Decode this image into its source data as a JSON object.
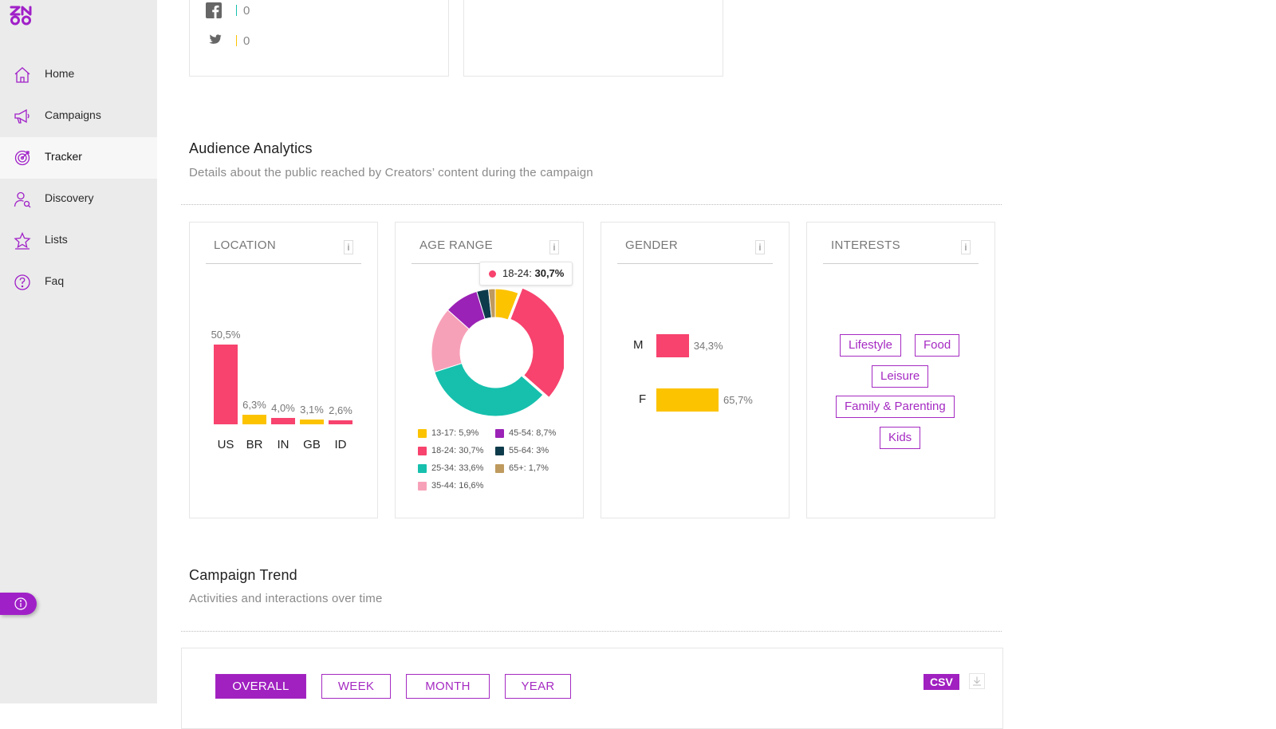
{
  "sidebar": {
    "items": [
      {
        "label": "Home",
        "icon": "home-icon"
      },
      {
        "label": "Campaigns",
        "icon": "megaphone-icon"
      },
      {
        "label": "Tracker",
        "icon": "target-icon",
        "active": true
      },
      {
        "label": "Discovery",
        "icon": "user-search-icon"
      },
      {
        "label": "Lists",
        "icon": "star-list-icon"
      },
      {
        "label": "Faq",
        "icon": "question-icon"
      }
    ]
  },
  "social": {
    "facebook_value": "0",
    "twitter_value": "0"
  },
  "audience": {
    "title": "Audience Analytics",
    "subtitle": "Details about the public reached by Creators’ content during the campaign"
  },
  "cards": {
    "location": {
      "title": "LOCATION",
      "info": "i"
    },
    "age": {
      "title": "AGE RANGE",
      "info": "i"
    },
    "gender": {
      "title": "GENDER",
      "info": "i"
    },
    "interests": {
      "title": "INTERESTS",
      "info": "i"
    }
  },
  "chart_data": [
    {
      "type": "bar",
      "categories": [
        "US",
        "BR",
        "IN",
        "GB",
        "ID"
      ],
      "values": [
        50.5,
        6.3,
        4.0,
        3.1,
        2.6
      ],
      "value_labels": [
        "50,5%",
        "6,3%",
        "4,0%",
        "3,1%",
        "2,6%"
      ],
      "colors": [
        "#f7436e",
        "#fcc300",
        "#f7436e",
        "#fcc300",
        "#f7436e"
      ]
    },
    {
      "type": "pie",
      "labels": [
        "13-17",
        "18-24",
        "25-34",
        "35-44",
        "45-54",
        "55-64",
        "65+"
      ],
      "values": [
        5.9,
        30.7,
        33.6,
        16.6,
        8.7,
        3,
        1.7
      ],
      "legend": [
        "13-17: 5,9%",
        "18-24: 30,7%",
        "25-34: 33,6%",
        "35-44: 16,6%",
        "45-54: 8,7%",
        "55-64: 3%",
        "65+: 1,7%"
      ],
      "colors": [
        "#fcc300",
        "#f7436e",
        "#16c0ad",
        "#f7a1b8",
        "#9b22b6",
        "#0e3b4b",
        "#bf9a5e"
      ],
      "tooltip": {
        "label": "18-24: ",
        "value": "30,7%"
      }
    },
    {
      "type": "bar",
      "categories": [
        "M",
        "F"
      ],
      "values": [
        34.3,
        65.7
      ],
      "value_labels": [
        "34,3%",
        "65,7%"
      ],
      "colors": [
        "#f7436e",
        "#fcc300"
      ]
    }
  ],
  "interests": [
    "Lifestyle",
    "Food",
    "Leisure",
    "Family & Parenting",
    "Kids"
  ],
  "trend": {
    "title": "Campaign Trend",
    "subtitle": "Activities and interactions over time",
    "buttons": [
      "OVERALL",
      "WEEK",
      "MONTH",
      "YEAR"
    ],
    "csv_label": "CSV"
  }
}
